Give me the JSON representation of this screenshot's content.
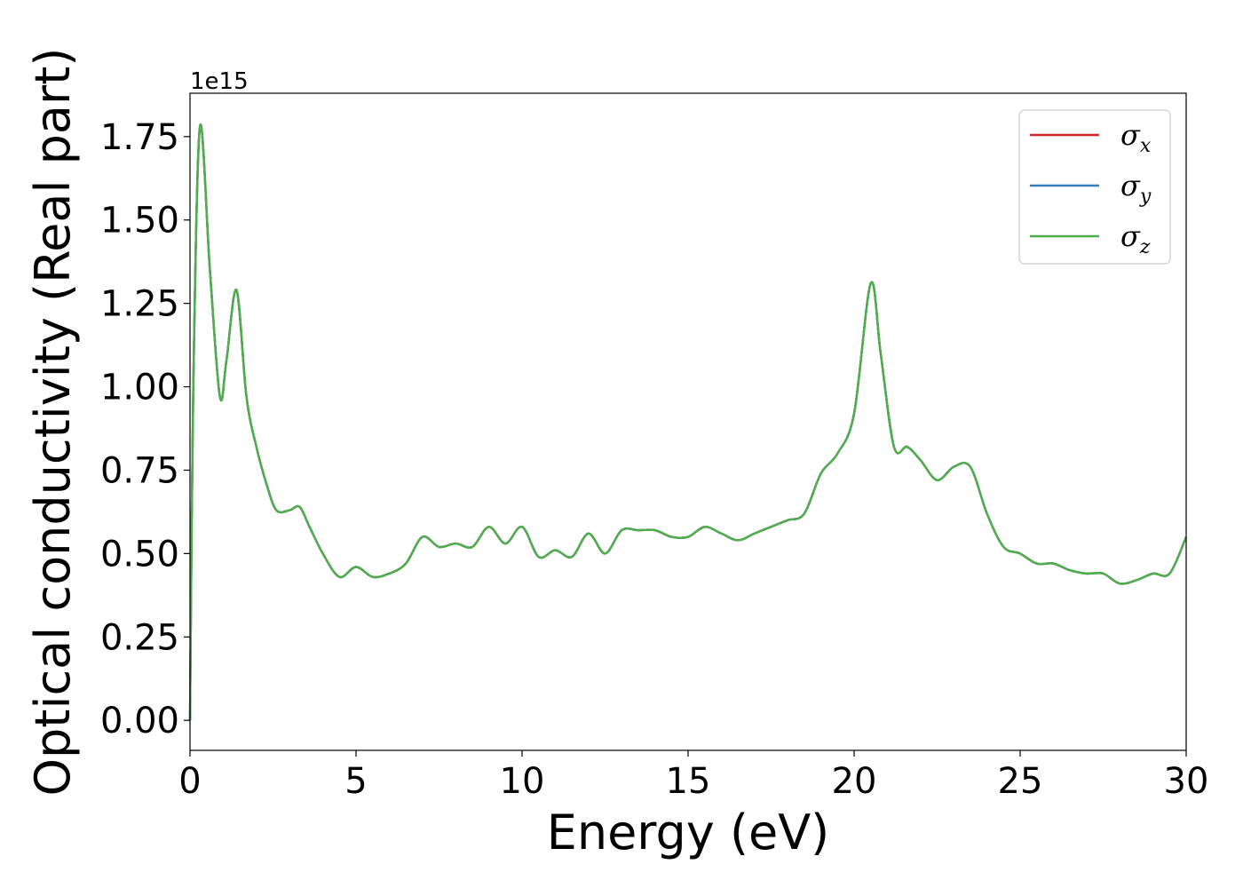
{
  "chart_data": {
    "type": "line",
    "xlabel": "Energy (eV)",
    "ylabel": "Optical conductivity (Real part)",
    "y_offset_label": "1e15",
    "xlim": [
      0,
      30
    ],
    "ylim": [
      -0.09,
      1.88
    ],
    "x_ticks": [
      0,
      5,
      10,
      15,
      20,
      25,
      30
    ],
    "x_tick_labels": [
      "0",
      "5",
      "10",
      "15",
      "20",
      "25",
      "30"
    ],
    "y_ticks": [
      0,
      0.25,
      0.5,
      0.75,
      1.0,
      1.25,
      1.5,
      1.75
    ],
    "y_tick_labels": [
      "0.00",
      "0.25",
      "0.50",
      "0.75",
      "1.00",
      "1.25",
      "1.50",
      "1.75"
    ],
    "grid": false,
    "legend_position": "top-right",
    "x": [
      0,
      0.1,
      0.3,
      0.6,
      0.9,
      1.1,
      1.4,
      1.7,
      2.0,
      2.3,
      2.6,
      3.0,
      3.3,
      3.6,
      4.0,
      4.5,
      5.0,
      5.5,
      6.0,
      6.5,
      7.0,
      7.5,
      8.0,
      8.5,
      9.0,
      9.5,
      10.0,
      10.5,
      11.0,
      11.5,
      12.0,
      12.5,
      13.0,
      13.5,
      14.0,
      14.5,
      15.0,
      15.5,
      16.0,
      16.5,
      17.0,
      17.5,
      18.0,
      18.5,
      19.0,
      19.5,
      20.0,
      20.5,
      20.8,
      21.2,
      21.6,
      22.0,
      22.5,
      23.0,
      23.5,
      24.0,
      24.5,
      25.0,
      25.5,
      26.0,
      26.5,
      27.0,
      27.5,
      28.0,
      28.5,
      29.0,
      29.5,
      30.0
    ],
    "series": [
      {
        "name": "σx",
        "label_base": "σ",
        "label_sub": "x",
        "color": "#d62728",
        "values": [
          0.0,
          1.0,
          1.78,
          1.35,
          0.97,
          1.08,
          1.29,
          0.97,
          0.82,
          0.71,
          0.63,
          0.63,
          0.64,
          0.58,
          0.5,
          0.43,
          0.46,
          0.43,
          0.44,
          0.47,
          0.55,
          0.52,
          0.53,
          0.52,
          0.58,
          0.53,
          0.58,
          0.49,
          0.51,
          0.49,
          0.56,
          0.5,
          0.57,
          0.57,
          0.57,
          0.55,
          0.55,
          0.58,
          0.56,
          0.54,
          0.56,
          0.58,
          0.6,
          0.62,
          0.74,
          0.8,
          0.92,
          1.31,
          1.1,
          0.82,
          0.82,
          0.78,
          0.72,
          0.76,
          0.76,
          0.62,
          0.52,
          0.5,
          0.47,
          0.47,
          0.45,
          0.44,
          0.44,
          0.41,
          0.42,
          0.44,
          0.44,
          0.55
        ]
      },
      {
        "name": "σy",
        "label_base": "σ",
        "label_sub": "y",
        "color": "#377eb8",
        "values": [
          0.0,
          1.0,
          1.78,
          1.35,
          0.97,
          1.08,
          1.29,
          0.97,
          0.82,
          0.71,
          0.63,
          0.63,
          0.64,
          0.58,
          0.5,
          0.43,
          0.46,
          0.43,
          0.44,
          0.47,
          0.55,
          0.52,
          0.53,
          0.52,
          0.58,
          0.53,
          0.58,
          0.49,
          0.51,
          0.49,
          0.56,
          0.5,
          0.57,
          0.57,
          0.57,
          0.55,
          0.55,
          0.58,
          0.56,
          0.54,
          0.56,
          0.58,
          0.6,
          0.62,
          0.74,
          0.8,
          0.92,
          1.31,
          1.1,
          0.82,
          0.82,
          0.78,
          0.72,
          0.76,
          0.76,
          0.62,
          0.52,
          0.5,
          0.47,
          0.47,
          0.45,
          0.44,
          0.44,
          0.41,
          0.42,
          0.44,
          0.44,
          0.55
        ]
      },
      {
        "name": "σz",
        "label_base": "σ",
        "label_sub": "z",
        "color": "#4daf4a",
        "values": [
          0.0,
          1.0,
          1.78,
          1.35,
          0.97,
          1.08,
          1.29,
          0.97,
          0.82,
          0.71,
          0.63,
          0.63,
          0.64,
          0.58,
          0.5,
          0.43,
          0.46,
          0.43,
          0.44,
          0.47,
          0.55,
          0.52,
          0.53,
          0.52,
          0.58,
          0.53,
          0.58,
          0.49,
          0.51,
          0.49,
          0.56,
          0.5,
          0.57,
          0.57,
          0.57,
          0.55,
          0.55,
          0.58,
          0.56,
          0.54,
          0.56,
          0.58,
          0.6,
          0.62,
          0.74,
          0.8,
          0.92,
          1.31,
          1.1,
          0.82,
          0.82,
          0.78,
          0.72,
          0.76,
          0.76,
          0.62,
          0.52,
          0.5,
          0.47,
          0.47,
          0.45,
          0.44,
          0.44,
          0.41,
          0.42,
          0.44,
          0.44,
          0.55
        ]
      }
    ]
  }
}
